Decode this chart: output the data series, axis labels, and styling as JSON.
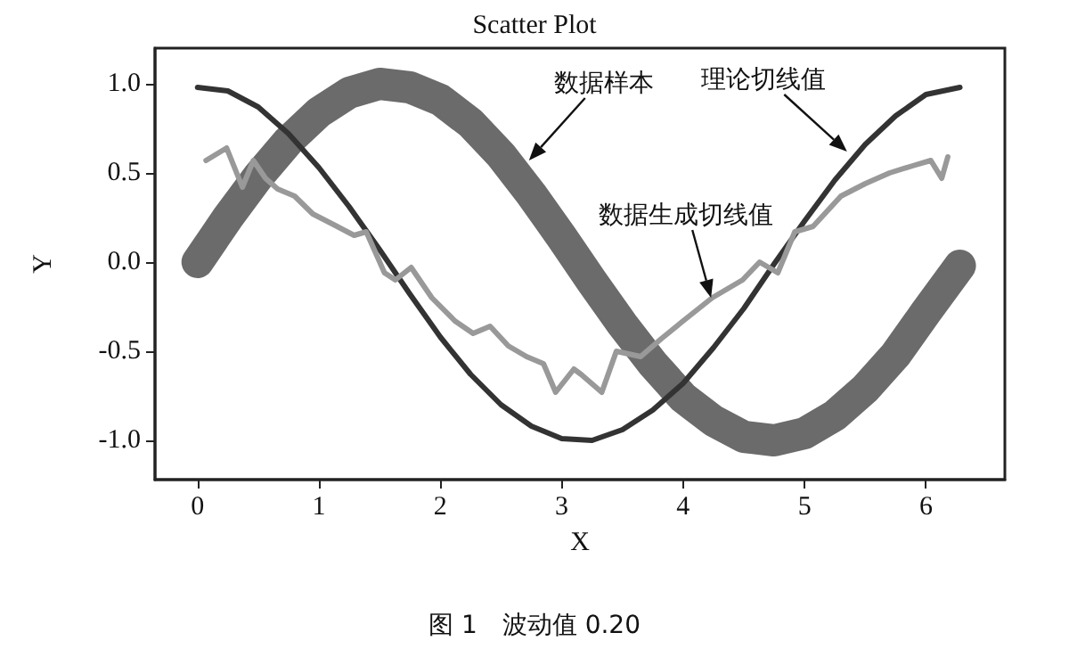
{
  "chart_data": {
    "type": "line",
    "title": "Scatter Plot",
    "xlabel": "X",
    "ylabel": "Y",
    "xlim": [
      -0.35,
      6.65
    ],
    "ylim": [
      -1.22,
      1.2
    ],
    "xticks": [
      0,
      1,
      2,
      3,
      4,
      5,
      6
    ],
    "yticks": [
      {
        "value": -1,
        "label": "-1.0"
      },
      -0.5,
      {
        "value": 0,
        "label": "0.0"
      },
      0.5,
      {
        "value": 1,
        "label": "1.0"
      }
    ],
    "marker": "none",
    "line_style": "solid",
    "series": [
      {
        "color": "#6b6b6b",
        "x": [
          0,
          0.25,
          0.5,
          0.75,
          1,
          1.25,
          1.5,
          1.75,
          2,
          2.25,
          2.5,
          2.75,
          3,
          3.25,
          3.5,
          3.75,
          4,
          4.25,
          4.5,
          4.75,
          5,
          5.25,
          5.5,
          5.75,
          6,
          6.28
        ],
        "values": [
          0,
          0.25,
          0.48,
          0.68,
          0.84,
          0.95,
          1.0,
          0.98,
          0.91,
          0.78,
          0.6,
          0.38,
          0.14,
          -0.11,
          -0.35,
          -0.57,
          -0.76,
          -0.89,
          -0.98,
          -1.0,
          -0.96,
          -0.86,
          -0.71,
          -0.52,
          -0.28,
          -0.02
        ]
      },
      {
        "color": "#333333",
        "x": [
          0,
          0.25,
          0.5,
          0.75,
          1,
          1.25,
          1.5,
          1.75,
          2,
          2.25,
          2.5,
          2.75,
          3,
          3.25,
          3.5,
          3.75,
          4,
          4.25,
          4.5,
          4.75,
          5,
          5.25,
          5.5,
          5.75,
          6,
          6.28
        ],
        "values": [
          0.98,
          0.96,
          0.87,
          0.72,
          0.53,
          0.31,
          0.07,
          -0.18,
          -0.42,
          -0.63,
          -0.8,
          -0.92,
          -0.99,
          -1.0,
          -0.94,
          -0.83,
          -0.68,
          -0.48,
          -0.26,
          -0.01,
          0.23,
          0.46,
          0.66,
          0.82,
          0.94,
          0.98
        ]
      },
      {
        "color": "#999999",
        "x": [
          0.07,
          0.24,
          0.37,
          0.46,
          0.56,
          0.66,
          0.8,
          0.95,
          1.15,
          1.29,
          1.39,
          1.54,
          1.63,
          1.76,
          1.93,
          2.12,
          2.27,
          2.41,
          2.56,
          2.71,
          2.85,
          2.95,
          3.1,
          3.16,
          3.33,
          3.45,
          3.65,
          3.82,
          4.0,
          4.24,
          4.49,
          4.63,
          4.78,
          4.92,
          5.07,
          5.3,
          5.5,
          5.7,
          5.89,
          6.04,
          6.13,
          6.18
        ],
        "values": [
          0.57,
          0.64,
          0.42,
          0.57,
          0.47,
          0.41,
          0.37,
          0.27,
          0.2,
          0.15,
          0.17,
          -0.06,
          -0.1,
          -0.03,
          -0.2,
          -0.33,
          -0.4,
          -0.36,
          -0.47,
          -0.53,
          -0.57,
          -0.73,
          -0.6,
          -0.63,
          -0.73,
          -0.5,
          -0.53,
          -0.43,
          -0.33,
          -0.2,
          -0.1,
          0.0,
          -0.06,
          0.17,
          0.2,
          0.37,
          0.44,
          0.5,
          0.54,
          0.57,
          0.47,
          0.59
        ]
      }
    ],
    "annotations": [
      {
        "text": "数据样本",
        "x": 2.73,
        "y": 0.57
      },
      {
        "text": "理论切线值",
        "x": 5.35,
        "y": 0.62
      },
      {
        "text": "数据生成切线值",
        "x": 4.23,
        "y": -0.2
      },
      "图 1　波动值 0.20"
    ]
  }
}
